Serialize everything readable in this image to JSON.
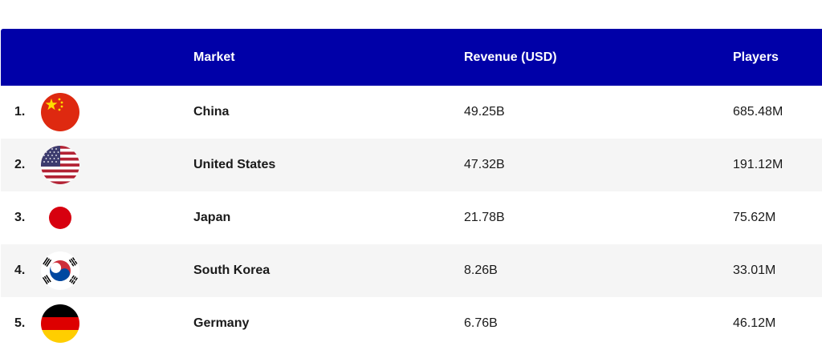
{
  "table": {
    "columns": {
      "rank": "",
      "flag": "",
      "market": "Market",
      "revenue": "Revenue (USD)",
      "players": "Players"
    },
    "rows": [
      {
        "rank": "1.",
        "flag_icon": "china-flag-icon",
        "market": "China",
        "revenue": "49.25B",
        "players": "685.48M"
      },
      {
        "rank": "2.",
        "flag_icon": "usa-flag-icon",
        "market": "United States",
        "revenue": "47.32B",
        "players": "191.12M"
      },
      {
        "rank": "3.",
        "flag_icon": "japan-flag-icon",
        "market": "Japan",
        "revenue": "21.78B",
        "players": "75.62M"
      },
      {
        "rank": "4.",
        "flag_icon": "south-korea-flag-icon",
        "market": "South Korea",
        "revenue": "8.26B",
        "players": "33.01M"
      },
      {
        "rank": "5.",
        "flag_icon": "germany-flag-icon",
        "market": "Germany",
        "revenue": "6.76B",
        "players": "46.12M"
      }
    ]
  },
  "colors": {
    "header_bg": "#0000a8",
    "header_text": "#ffffff",
    "alt_row_bg": "#f5f5f5"
  },
  "chart_data": {
    "type": "table",
    "columns": [
      "Market",
      "Revenue (USD)",
      "Players"
    ],
    "rows": [
      [
        "China",
        "49.25B",
        "685.48M"
      ],
      [
        "United States",
        "47.32B",
        "191.12M"
      ],
      [
        "Japan",
        "21.78B",
        "75.62M"
      ],
      [
        "South Korea",
        "8.26B",
        "33.01M"
      ],
      [
        "Germany",
        "6.76B",
        "46.12M"
      ]
    ]
  }
}
